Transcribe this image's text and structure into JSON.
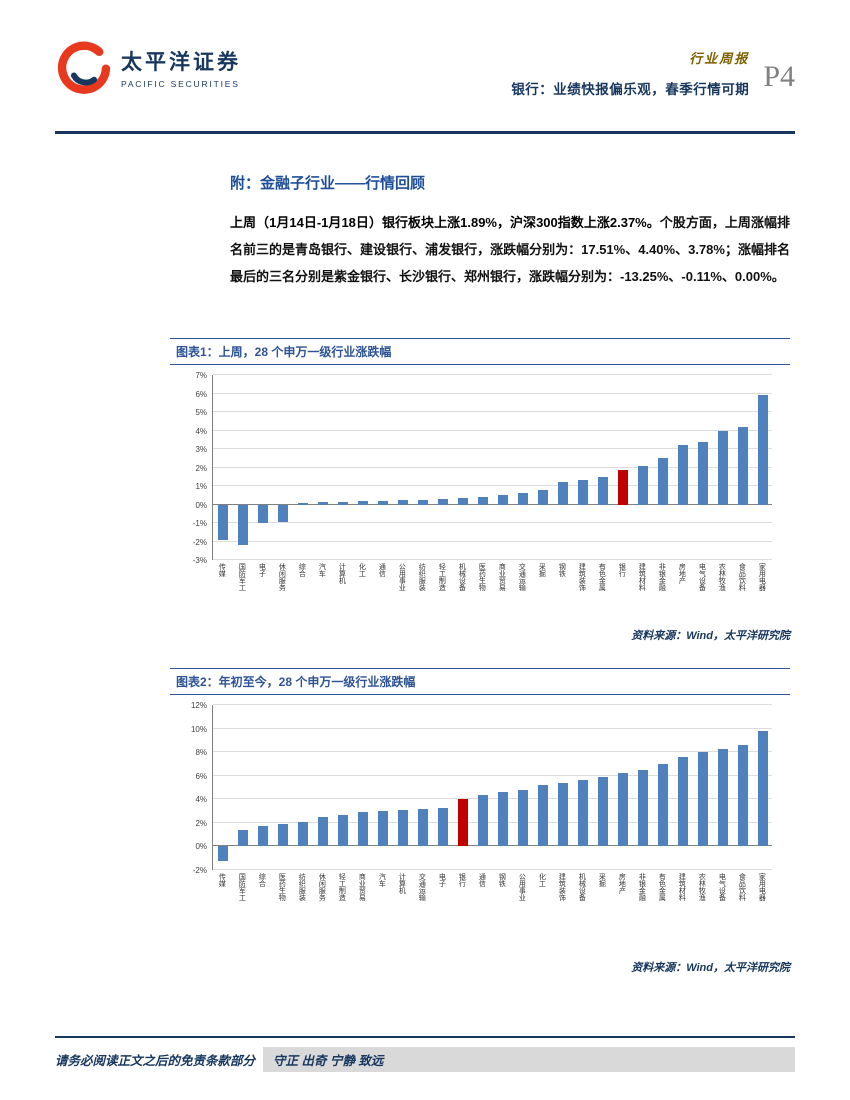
{
  "header": {
    "logo": {
      "cn": "太平洋证券",
      "en": "PACIFIC SECURITIES"
    },
    "report_type": "行业周报",
    "report_title": "银行：业绩快报偏乐观，春季行情可期",
    "page_label": "P4"
  },
  "section": {
    "title": "附：金融子行业——行情回顾",
    "paragraph_lead": "上周（1月14日-1月18日）银行板块上涨1.89%，沪深300指数上涨2.37%。",
    "paragraph_rest": "个股方面，上周涨幅排名前三的是青岛银行、建设银行、浦发银行，涨跌幅分别为：17.51%、4.40%、3.78%；涨幅排名最后的三名分别是紫金银行、长沙银行、郑州银行，涨跌幅分别为：-13.25%、-0.11%、0.00%。"
  },
  "figure1": {
    "caption": "图表1：上周，28 个申万一级行业涨跌幅",
    "source": "资料来源：Wind，太平洋研究院"
  },
  "figure2": {
    "caption": "图表2：年初至今，28 个申万一级行业涨跌幅",
    "source": "资料来源：Wind，太平洋研究院"
  },
  "footer": {
    "disclaimer": "请务必阅读正文之后的免责条款部分",
    "motto": "守正 出奇 宁静 致远"
  },
  "colors": {
    "accent_navy": "#17375E",
    "accent_blue": "#2E5496",
    "gold": "#7F6000",
    "bar_blue": "#4F81BD",
    "bar_red": "#C00000"
  },
  "chart_data": [
    {
      "type": "bar",
      "title": "上周，28 个申万一级行业涨跌幅",
      "categories": [
        "传媒",
        "国防军工",
        "电子",
        "休闲服务",
        "综合",
        "汽车",
        "计算机",
        "化工",
        "通信",
        "公用事业",
        "纺织服装",
        "轻工制造",
        "机械设备",
        "医药生物",
        "商业贸易",
        "交通运输",
        "采掘",
        "钢铁",
        "建筑装饰",
        "有色金属",
        "银行",
        "建筑材料",
        "非银金融",
        "房地产",
        "电气设备",
        "农林牧渔",
        "食品饮料",
        "家用电器"
      ],
      "values": [
        -1.9,
        -2.2,
        -1.0,
        -0.95,
        0.1,
        0.12,
        0.15,
        0.18,
        0.2,
        0.25,
        0.25,
        0.3,
        0.35,
        0.4,
        0.5,
        0.6,
        0.8,
        1.2,
        1.35,
        1.5,
        1.89,
        2.1,
        2.5,
        3.2,
        3.4,
        4.0,
        4.2,
        5.9
      ],
      "highlight_category": "银行",
      "highlight_value": 1.89,
      "bar_color": "#4F81BD",
      "highlight_color": "#C00000",
      "xlabel": "",
      "ylabel": "",
      "ylim": [
        -3,
        7
      ],
      "ytick_step": 1,
      "grid": true,
      "legend": "none"
    },
    {
      "type": "bar",
      "title": "年初至今，28 个申万一级行业涨跌幅",
      "categories": [
        "传媒",
        "国防军工",
        "综合",
        "医药生物",
        "纺织服装",
        "休闲服务",
        "轻工制造",
        "商业贸易",
        "汽车",
        "计算机",
        "交通运输",
        "电子",
        "银行",
        "通信",
        "钢铁",
        "公用事业",
        "化工",
        "建筑装饰",
        "机械设备",
        "采掘",
        "房地产",
        "非银金融",
        "有色金属",
        "建筑材料",
        "农林牧渔",
        "电气设备",
        "食品饮料",
        "家用电器"
      ],
      "values": [
        -1.2,
        1.4,
        1.7,
        1.9,
        2.1,
        2.5,
        2.7,
        2.9,
        3.0,
        3.1,
        3.2,
        3.3,
        4.0,
        4.4,
        4.6,
        4.8,
        5.2,
        5.4,
        5.6,
        5.9,
        6.2,
        6.5,
        7.0,
        7.6,
        8.0,
        8.3,
        8.6,
        9.8
      ],
      "highlight_category": "银行",
      "highlight_value": 4.0,
      "bar_color": "#4F81BD",
      "highlight_color": "#C00000",
      "xlabel": "",
      "ylabel": "",
      "ylim": [
        -2,
        12
      ],
      "ytick_step": 2,
      "grid": true,
      "legend": "none"
    }
  ]
}
